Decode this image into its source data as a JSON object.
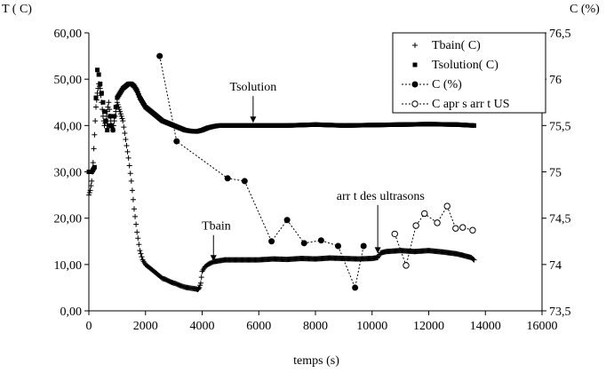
{
  "chart_data": {
    "type": "scatter",
    "title": "",
    "xlabel": "temps (s)",
    "ylabel_left": "T (  C)",
    "ylabel_right": "C (%)",
    "xlim": [
      0,
      16000
    ],
    "xticks": [
      "0",
      "2000",
      "4000",
      "6000",
      "8000",
      "10000",
      "12000",
      "14000",
      "16000"
    ],
    "ylim_left": [
      0,
      60
    ],
    "yticks_left": [
      "0,00",
      "10,00",
      "20,00",
      "30,00",
      "40,00",
      "50,00",
      "60,00"
    ],
    "ylim_right": [
      73.5,
      76.5
    ],
    "yticks_right": [
      "73,5",
      "74",
      "74,5",
      "75",
      "75,5",
      "76",
      "76,5"
    ],
    "grid": false,
    "legend_position": "top-right",
    "series": [
      {
        "name": "Tbain(  C)",
        "axis": "left",
        "marker": "plus",
        "x": [
          0,
          50,
          100,
          150,
          200,
          250,
          300,
          350,
          400,
          450,
          500,
          550,
          600,
          650,
          700,
          750,
          800,
          850,
          900,
          950,
          1000,
          1050,
          1100,
          1150,
          1200,
          1300,
          1400,
          1500,
          1600,
          1700,
          1800,
          1900,
          2000,
          2100,
          2200,
          2300,
          2400,
          2500,
          2600,
          2700,
          2800,
          2900,
          3000,
          3100,
          3200,
          3300,
          3400,
          3500,
          3600,
          3700,
          3800,
          3850,
          3900,
          3950,
          4000,
          4100,
          4200,
          4300,
          4400,
          4600,
          4800,
          5000,
          5500,
          6000,
          6500,
          7000,
          7500,
          8000,
          8500,
          9000,
          9500,
          10000,
          10200,
          10300,
          10500,
          11000,
          11500,
          12000,
          12500,
          13000,
          13500,
          13600
        ],
        "y": [
          25,
          26,
          28,
          32,
          38,
          44,
          47,
          49,
          48,
          45,
          42,
          40,
          41,
          43,
          45,
          42,
          40,
          39,
          41,
          43,
          45,
          44,
          43,
          42,
          41,
          37,
          33,
          28,
          22,
          17,
          13,
          11,
          10,
          9.5,
          9,
          8.5,
          8,
          7.5,
          7,
          6.8,
          6.5,
          6.2,
          6,
          5.8,
          5.5,
          5.3,
          5.1,
          5,
          4.9,
          4.8,
          4.7,
          4.6,
          5,
          6,
          8.5,
          9.5,
          10,
          10.3,
          10.6,
          10.8,
          11,
          11,
          11,
          11,
          11.2,
          11.1,
          11.3,
          11.2,
          11.4,
          11.3,
          11.2,
          11.3,
          11.5,
          12.5,
          12.8,
          13,
          12.8,
          13,
          12.7,
          12.3,
          11.5,
          11
        ]
      },
      {
        "name": "Tsolution(  C)",
        "axis": "left",
        "marker": "square",
        "x": [
          0,
          100,
          200,
          250,
          300,
          350,
          400,
          450,
          500,
          550,
          600,
          650,
          700,
          750,
          800,
          850,
          900,
          950,
          1000,
          1100,
          1200,
          1300,
          1400,
          1500,
          1600,
          1700,
          1800,
          1900,
          2000,
          2100,
          2200,
          2300,
          2400,
          2500,
          2600,
          2800,
          3000,
          3200,
          3400,
          3600,
          3800,
          4000,
          4200,
          4400,
          4600,
          5000,
          5500,
          6000,
          7000,
          8000,
          9000,
          10000,
          11000,
          12000,
          13000,
          13600
        ],
        "y": [
          30,
          30,
          31,
          46,
          52,
          51,
          49,
          47,
          45,
          43,
          41,
          39,
          40,
          42,
          40,
          39,
          42,
          44,
          46,
          47,
          48,
          48.5,
          49,
          49,
          48.5,
          47.5,
          46,
          45,
          44,
          43.5,
          43,
          42.5,
          42,
          41.5,
          41,
          40.5,
          40,
          39.5,
          39,
          38.8,
          38.7,
          39,
          39.5,
          39.8,
          40,
          40,
          40,
          40,
          40,
          40.2,
          40,
          40.1,
          40.2,
          40.3,
          40.2,
          40
        ]
      },
      {
        "name": "C (%)",
        "axis": "right",
        "marker": "filled-circle",
        "line": "dotted",
        "x": [
          2500,
          3100,
          4900,
          5500,
          6450,
          7000,
          7600,
          8200,
          8800,
          9400,
          9700
        ],
        "y": [
          76.25,
          75.33,
          74.93,
          74.9,
          74.25,
          74.48,
          74.23,
          74.26,
          74.2,
          73.75,
          74.2
        ]
      },
      {
        "name": "C apr s arr   t US",
        "axis": "right",
        "marker": "open-circle",
        "line": "dotted",
        "x": [
          10800,
          11200,
          11550,
          11850,
          12300,
          12650,
          12950,
          13200,
          13550
        ],
        "y": [
          74.33,
          73.99,
          74.42,
          74.55,
          74.45,
          74.63,
          74.39,
          74.4,
          74.37
        ]
      }
    ],
    "annotations": [
      {
        "text": "Tsolution",
        "x": 5800,
        "y": 40.4,
        "axis": "left",
        "label_x": 5800,
        "label_y": 47.5
      },
      {
        "text": "Tbain",
        "x": 4400,
        "y": 10.5,
        "axis": "left",
        "label_x": 4500,
        "label_y": 17.5
      },
      {
        "text": "arr   t des ultrasons",
        "x": 10200,
        "y": 12.2,
        "axis": "left",
        "label_x": 10300,
        "label_y": 24
      }
    ]
  }
}
